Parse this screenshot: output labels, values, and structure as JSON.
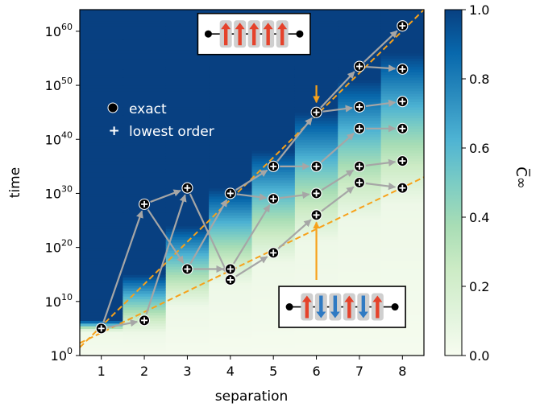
{
  "chart_data": {
    "type": "heatmap",
    "xlabel": "separation",
    "ylabel": "time",
    "x_ticks": [
      1,
      2,
      3,
      4,
      5,
      6,
      7,
      8
    ],
    "x_tick_labels": [
      "1",
      "2",
      "3",
      "4",
      "5",
      "6",
      "7",
      "8"
    ],
    "xlim": [
      0.5,
      8.5
    ],
    "y_scale": "log",
    "ylim_log10": [
      0,
      64
    ],
    "y_ticks_log10": [
      0,
      10,
      20,
      30,
      40,
      50,
      60
    ],
    "y_tick_base": "10",
    "y_tick_exponents": [
      "0",
      "10",
      "20",
      "30",
      "40",
      "50",
      "60"
    ],
    "colorbar": {
      "label": "C̅∞",
      "range": [
        0.0,
        1.0
      ],
      "ticks": [
        "0.0",
        "0.2",
        "0.4",
        "0.6",
        "0.8",
        "1.0"
      ],
      "colormap": "GnBu"
    },
    "heatmap_transition_log10": [
      {
        "x": 1,
        "lo": 4.5,
        "hi": 6.5
      },
      {
        "x": 2,
        "lo": 4,
        "hi": 15
      },
      {
        "x": 3,
        "lo": 9,
        "hi": 24
      },
      {
        "x": 4,
        "lo": 13,
        "hi": 31
      },
      {
        "x": 5,
        "lo": 17,
        "hi": 38
      },
      {
        "x": 6,
        "lo": 21,
        "hi": 45
      },
      {
        "x": 7,
        "lo": 25,
        "hi": 51
      },
      {
        "x": 8,
        "lo": 28,
        "hi": 56
      }
    ],
    "legend": {
      "position": "upper-left",
      "entries": [
        {
          "marker": "circle",
          "label": "exact"
        },
        {
          "marker": "plus",
          "label": "lowest order"
        }
      ]
    },
    "points_log10": [
      {
        "x": 1,
        "y": 5
      },
      {
        "x": 2,
        "y": 6.5
      },
      {
        "x": 2,
        "y": 28
      },
      {
        "x": 3,
        "y": 31
      },
      {
        "x": 3,
        "y": 16
      },
      {
        "x": 4,
        "y": 14
      },
      {
        "x": 4,
        "y": 16
      },
      {
        "x": 4,
        "y": 30
      },
      {
        "x": 5,
        "y": 19
      },
      {
        "x": 5,
        "y": 29
      },
      {
        "x": 5,
        "y": 35
      },
      {
        "x": 6,
        "y": 26
      },
      {
        "x": 6,
        "y": 30
      },
      {
        "x": 6,
        "y": 35
      },
      {
        "x": 6,
        "y": 45
      },
      {
        "x": 7,
        "y": 32
      },
      {
        "x": 7,
        "y": 35
      },
      {
        "x": 7,
        "y": 42
      },
      {
        "x": 7,
        "y": 46
      },
      {
        "x": 7,
        "y": 53.5
      },
      {
        "x": 8,
        "y": 31
      },
      {
        "x": 8,
        "y": 36
      },
      {
        "x": 8,
        "y": 42
      },
      {
        "x": 8,
        "y": 47
      },
      {
        "x": 8,
        "y": 53
      },
      {
        "x": 8,
        "y": 61
      }
    ],
    "arrows_log10": [
      {
        "from": [
          1,
          5
        ],
        "to": [
          2,
          6.5
        ]
      },
      {
        "from": [
          1,
          5
        ],
        "to": [
          2,
          28
        ]
      },
      {
        "from": [
          2,
          6.5
        ],
        "to": [
          3,
          31
        ]
      },
      {
        "from": [
          2,
          28
        ],
        "to": [
          3,
          31
        ]
      },
      {
        "from": [
          2,
          28
        ],
        "to": [
          3,
          16
        ]
      },
      {
        "from": [
          3,
          31
        ],
        "to": [
          4,
          14
        ]
      },
      {
        "from": [
          3,
          16
        ],
        "to": [
          4,
          16
        ]
      },
      {
        "from": [
          3,
          16
        ],
        "to": [
          4,
          30
        ]
      },
      {
        "from": [
          4,
          14
        ],
        "to": [
          5,
          19
        ]
      },
      {
        "from": [
          4,
          16
        ],
        "to": [
          5,
          29
        ]
      },
      {
        "from": [
          4,
          30
        ],
        "to": [
          5,
          29
        ]
      },
      {
        "from": [
          4,
          30
        ],
        "to": [
          5,
          35
        ]
      },
      {
        "from": [
          5,
          19
        ],
        "to": [
          6,
          26
        ]
      },
      {
        "from": [
          5,
          29
        ],
        "to": [
          6,
          30
        ]
      },
      {
        "from": [
          5,
          35
        ],
        "to": [
          6,
          35
        ]
      },
      {
        "from": [
          5,
          35
        ],
        "to": [
          6,
          45
        ]
      },
      {
        "from": [
          6,
          26
        ],
        "to": [
          7,
          32
        ]
      },
      {
        "from": [
          6,
          30
        ],
        "to": [
          7,
          35
        ]
      },
      {
        "from": [
          6,
          35
        ],
        "to": [
          7,
          42
        ]
      },
      {
        "from": [
          6,
          45
        ],
        "to": [
          7,
          46
        ]
      },
      {
        "from": [
          6,
          45
        ],
        "to": [
          7,
          53.5
        ]
      },
      {
        "from": [
          7,
          32
        ],
        "to": [
          8,
          31
        ]
      },
      {
        "from": [
          7,
          35
        ],
        "to": [
          8,
          36
        ]
      },
      {
        "from": [
          7,
          42
        ],
        "to": [
          8,
          42
        ]
      },
      {
        "from": [
          7,
          46
        ],
        "to": [
          8,
          47
        ]
      },
      {
        "from": [
          7,
          53.5
        ],
        "to": [
          8,
          53
        ]
      },
      {
        "from": [
          7,
          53.5
        ],
        "to": [
          8,
          61
        ]
      }
    ],
    "dashed_lines_log10": [
      {
        "color": "#f7a11a",
        "from": [
          0.5,
          1.5
        ],
        "to": [
          8.5,
          64
        ]
      },
      {
        "color": "#f7a11a",
        "from": [
          0.5,
          2.3
        ],
        "to": [
          8.5,
          33
        ]
      }
    ],
    "orange_arrows_log10": [
      {
        "from": [
          6,
          50
        ],
        "to": [
          6,
          45.5
        ]
      },
      {
        "from": [
          6,
          14
        ],
        "to": [
          6,
          26
        ]
      }
    ],
    "insets": [
      {
        "name": "ferromagnetic",
        "center_log10": [
          4.55,
          59.5
        ],
        "spins": [
          "up",
          "up",
          "up",
          "up",
          "up"
        ],
        "colors": {
          "up": "#e5422b"
        }
      },
      {
        "name": "neel",
        "center_log10": [
          6.6,
          9
        ],
        "spins": [
          "up",
          "down",
          "down",
          "up",
          "down",
          "up"
        ],
        "colors": {
          "up": "#e5422b",
          "down": "#2f7ac3"
        }
      }
    ]
  }
}
